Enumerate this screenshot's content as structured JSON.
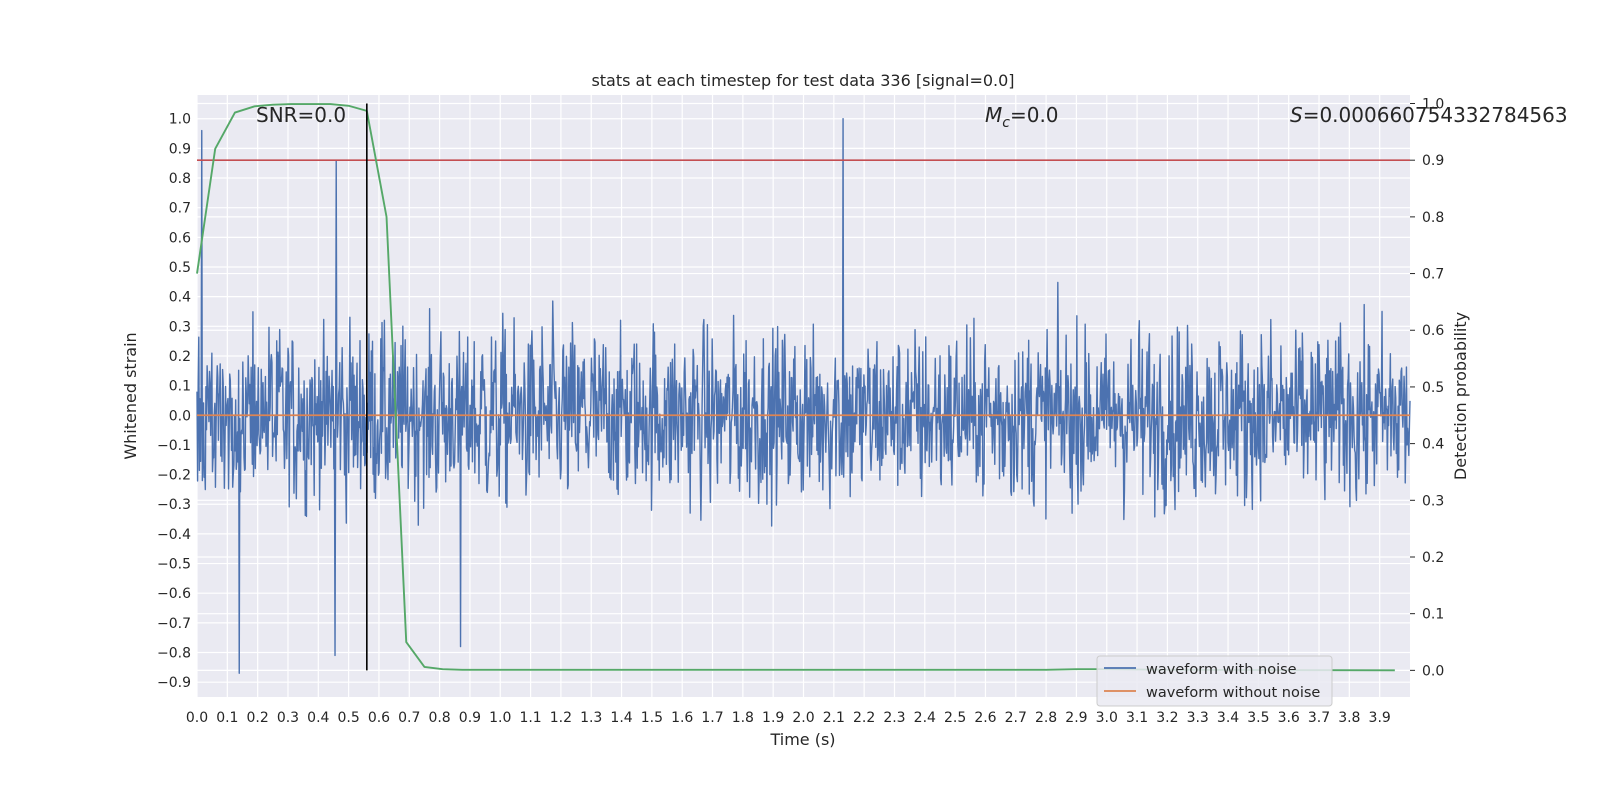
{
  "chart_data": {
    "type": "line",
    "title": "stats at each timestep for test data 336 [signal=0.0]",
    "xlabel": "Time (s)",
    "ylabel": "Whitened strain",
    "y2label": "Detection probability",
    "xlim": [
      0.0,
      4.0
    ],
    "ylim": [
      -0.95,
      1.08
    ],
    "y2lim": [
      -0.047,
      1.015
    ],
    "xticks": [
      0.0,
      0.1,
      0.2,
      0.3,
      0.4,
      0.5,
      0.6,
      0.7,
      0.8,
      0.9,
      1.0,
      1.1,
      1.2,
      1.3,
      1.4,
      1.5,
      1.6,
      1.7,
      1.8,
      1.9,
      2.0,
      2.1,
      2.2,
      2.3,
      2.4,
      2.5,
      2.6,
      2.7,
      2.8,
      2.9,
      3.0,
      3.1,
      3.2,
      3.3,
      3.4,
      3.5,
      3.6,
      3.7,
      3.8,
      3.9
    ],
    "yticks": [
      1.0,
      0.9,
      0.8,
      0.7,
      0.6,
      0.5,
      0.4,
      0.3,
      0.2,
      0.1,
      0.0,
      -0.1,
      -0.2,
      -0.3,
      -0.4,
      -0.5,
      -0.6,
      -0.7,
      -0.8,
      -0.9
    ],
    "y2ticks": [
      1.0,
      0.9,
      0.8,
      0.7,
      0.6,
      0.5,
      0.4,
      0.3,
      0.2,
      0.1,
      0.0
    ],
    "grid": true,
    "annotations": {
      "snr": "SNR=0.0",
      "mc_symbol": "M",
      "mc_sub": "c",
      "mc_value": "=0.0",
      "s_symbol": "S",
      "s_value": "=0.000660754332784563"
    },
    "series": [
      {
        "name": "waveform with noise",
        "color": "#4c72b0",
        "axis": "left",
        "x_range": [
          0.0,
          4.0
        ],
        "y_range_observed": [
          -0.87,
          1.0
        ],
        "peaks": [
          [
            0.015,
            0.96
          ],
          [
            0.14,
            -0.87
          ],
          [
            0.46,
            0.86
          ],
          [
            0.455,
            -0.81
          ],
          [
            0.87,
            -0.78
          ],
          [
            2.13,
            1.0
          ]
        ]
      },
      {
        "name": "waveform without noise",
        "color": "#dd8452",
        "axis": "left",
        "x": [
          0.0,
          4.0
        ],
        "y": [
          0.0,
          0.0
        ]
      },
      {
        "color": "#55a868",
        "axis": "right",
        "x": [
          0.0,
          0.06,
          0.125,
          0.19,
          0.25,
          0.31,
          0.375,
          0.44,
          0.5,
          0.56,
          0.625,
          0.69,
          0.75,
          0.81,
          0.875,
          2.8,
          2.9,
          3.0,
          3.2,
          3.95
        ],
        "y": [
          0.7,
          0.92,
          0.984,
          0.995,
          0.998,
          0.999,
          0.999,
          0.999,
          0.996,
          0.987,
          0.8,
          0.05,
          0.006,
          0.002,
          0.001,
          0.001,
          0.002,
          0.002,
          0.001,
          0.0
        ]
      }
    ],
    "hlines": [
      {
        "axis": "right",
        "y": 0.9,
        "color": "#c44e52"
      }
    ],
    "vlines": [
      {
        "x": 0.56,
        "color": "#000000",
        "y_from": 0.0,
        "y_to": 1.0
      }
    ],
    "legend": {
      "position": "lower-right"
    }
  }
}
